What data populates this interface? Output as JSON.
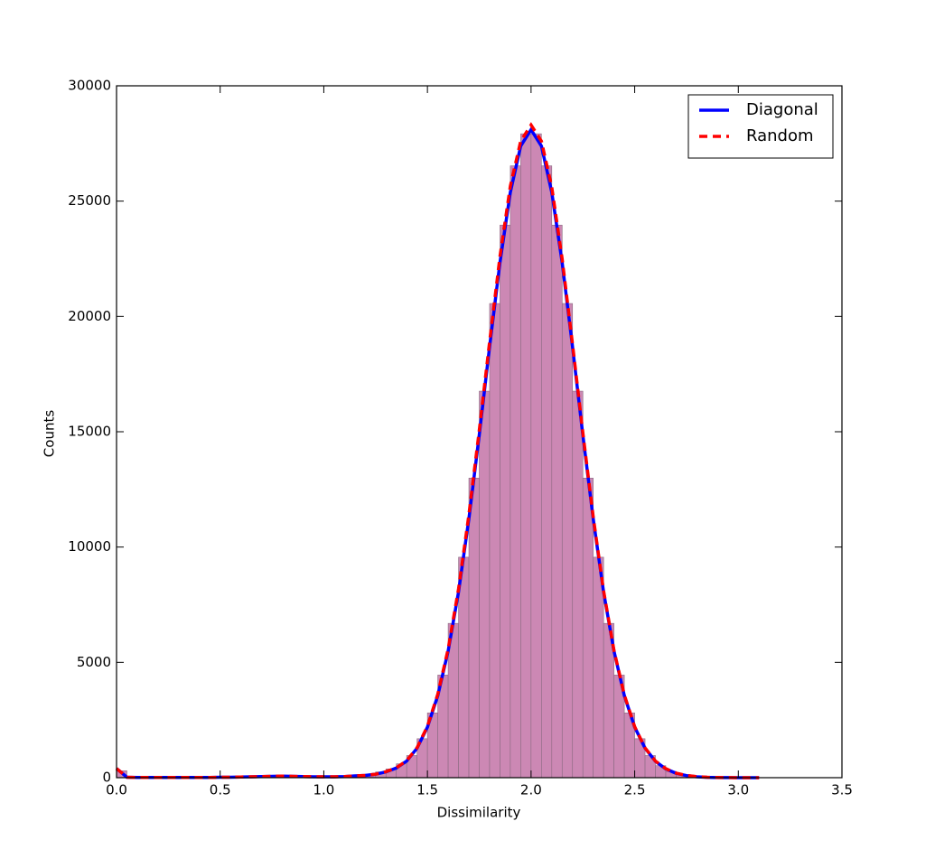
{
  "chart_data": {
    "type": "histogram",
    "xlabel": "Dissimilarity",
    "ylabel": "Counts",
    "xlim": [
      0,
      3.5
    ],
    "ylim": [
      0,
      30000
    ],
    "xticks": [
      {
        "value": 0,
        "label": "0.0"
      },
      0.5,
      {
        "value": 1,
        "label": "1.0"
      },
      1.5,
      {
        "value": 2,
        "label": "2.0"
      },
      2.5,
      {
        "value": 3,
        "label": "3.0"
      },
      3.5
    ],
    "yticks": [
      0,
      5000,
      10000,
      15000,
      20000,
      25000,
      30000
    ],
    "legend": "upper right",
    "hist_color": "#cc88b4",
    "bins": [
      0,
      0.05,
      0.1,
      0.15,
      0.2,
      0.25,
      0.3,
      0.35,
      0.4,
      0.45,
      0.5,
      0.55,
      0.6,
      0.65,
      0.7,
      0.75,
      0.8,
      0.85,
      0.9,
      0.95,
      1,
      1.05,
      1.1,
      1.15,
      1.2,
      1.25,
      1.3,
      1.35,
      1.4,
      1.45,
      1.5,
      1.55,
      1.6,
      1.65,
      1.7,
      1.75,
      1.8,
      1.85,
      1.9,
      1.95,
      2,
      2.05,
      2.1,
      2.15,
      2.2,
      2.25,
      2.3,
      2.35,
      2.4,
      2.45,
      2.5,
      2.55,
      2.6,
      2.65,
      2.7,
      2.75,
      2.8,
      2.85,
      2.9,
      2.95,
      3,
      3.05,
      3.1
    ],
    "counts": [
      300,
      10,
      10,
      10,
      10,
      10,
      10,
      10,
      10,
      10,
      10,
      10,
      50,
      50,
      50,
      50,
      50,
      50,
      50,
      50,
      50,
      60,
      80,
      100,
      150,
      250,
      380,
      600,
      960,
      1690,
      2810,
      4450,
      6690,
      9560,
      12990,
      16760,
      20560,
      23960,
      26530,
      27920,
      27920,
      26530,
      23960,
      20560,
      16760,
      12990,
      9560,
      6690,
      4450,
      2810,
      1690,
      960,
      520,
      270,
      130,
      60,
      27,
      11,
      4,
      2,
      1,
      1
    ],
    "x": [
      0,
      0.05,
      0.1,
      0.15,
      0.2,
      0.25,
      0.3,
      0.35,
      0.4,
      0.45,
      0.5,
      0.55,
      0.6,
      0.65,
      0.7,
      0.75,
      0.8,
      0.85,
      0.9,
      0.95,
      1,
      1.05,
      1.1,
      1.15,
      1.2,
      1.25,
      1.3,
      1.35,
      1.4,
      1.45,
      1.5,
      1.55,
      1.6,
      1.65,
      1.7,
      1.75,
      1.8,
      1.85,
      1.9,
      1.95,
      2,
      2.05,
      2.1,
      2.15,
      2.2,
      2.25,
      2.3,
      2.35,
      2.4,
      2.45,
      2.5,
      2.55,
      2.6,
      2.65,
      2.7,
      2.75,
      2.8,
      2.85,
      2.9,
      2.95,
      3,
      3.05,
      3.1
    ],
    "series": [
      {
        "name": "Diagonal",
        "color": "#0000ff",
        "dash": "solid",
        "values": [
          400,
          20,
          10,
          10,
          10,
          10,
          10,
          10,
          10,
          10,
          20,
          20,
          30,
          40,
          50,
          60,
          70,
          60,
          50,
          40,
          40,
          40,
          50,
          80,
          100,
          150,
          250,
          420,
          720,
          1280,
          2190,
          3560,
          5490,
          8050,
          11220,
          14850,
          18690,
          22340,
          25380,
          27390,
          28100,
          27390,
          25380,
          22340,
          18690,
          14850,
          11220,
          8050,
          5490,
          3560,
          2190,
          1280,
          710,
          380,
          190,
          90,
          40,
          17,
          7,
          3,
          1,
          0,
          0
        ]
      },
      {
        "name": "Random",
        "color": "#ff0000",
        "dash": "dashed",
        "values": [
          400,
          20,
          10,
          10,
          10,
          10,
          10,
          10,
          10,
          10,
          20,
          20,
          30,
          40,
          50,
          60,
          70,
          60,
          50,
          40,
          40,
          40,
          50,
          80,
          100,
          150,
          260,
          430,
          740,
          1300,
          2230,
          3620,
          5580,
          8180,
          11400,
          15050,
          18900,
          22600,
          25650,
          27600,
          28300,
          27600,
          25600,
          22500,
          18800,
          14950,
          11300,
          8100,
          5520,
          3590,
          2210,
          1290,
          720,
          390,
          200,
          95,
          45,
          20,
          8,
          4,
          2,
          0,
          0
        ]
      }
    ]
  }
}
